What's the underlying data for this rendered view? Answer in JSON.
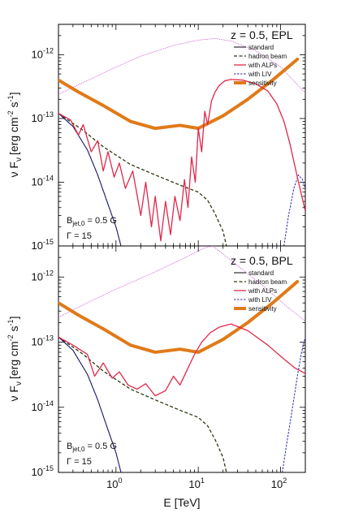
{
  "chart_data": {
    "type": "line",
    "x_axis": {
      "label": "E [TeV]",
      "scale": "log",
      "range": [
        0.2,
        200
      ],
      "ticks": [
        {
          "base": "10",
          "exp": "0",
          "value": 1
        },
        {
          "base": "10",
          "exp": "1",
          "value": 10
        },
        {
          "base": "10",
          "exp": "2",
          "value": 100
        }
      ]
    },
    "y_axis": {
      "label_main": "ν F",
      "label_sub": "ν",
      "label_unit_open": "[erg cm",
      "label_unit_exp1": "-2",
      "label_unit_mid": " s",
      "label_unit_exp2": "-1",
      "label_unit_close": "]",
      "scale": "log",
      "range": [
        1e-15,
        3e-12
      ],
      "ticks": [
        {
          "base": "10",
          "exp": "-12",
          "value": 1e-12
        },
        {
          "base": "10",
          "exp": "-13",
          "value": 1e-13
        },
        {
          "base": "10",
          "exp": "-14",
          "value": 1e-14
        },
        {
          "base": "10",
          "exp": "-15",
          "value": 1e-15
        }
      ]
    },
    "legend_entries": [
      {
        "key": "standard",
        "label": "standard"
      },
      {
        "key": "hadron",
        "label": "hadron beam"
      },
      {
        "key": "alps",
        "label": "with ALPs"
      },
      {
        "key": "liv",
        "label": "with LIV"
      },
      {
        "key": "sensitivity",
        "label": "sensitivity"
      }
    ],
    "series_colors": {
      "intrinsic": "#cc44cc",
      "standard": "#000000",
      "hadron": "#2a3a10",
      "alps": "#e0284a",
      "liv": "#2828b4",
      "sensitivity": "#e07a18"
    },
    "panels": [
      {
        "id": "top",
        "title": "z = 0.5, EPL",
        "annotation": {
          "b_main": "B",
          "b_sub": "jet,0",
          "b_value": " = 0.5 G",
          "gamma": "Γ = 15"
        },
        "series": {
          "intrinsic": [
            [
              0.2,
              2.4e-13
            ],
            [
              0.5,
              4.2e-13
            ],
            [
              1,
              6.4e-13
            ],
            [
              2,
              9.5e-13
            ],
            [
              5,
              1.4e-12
            ],
            [
              10,
              1.7e-12
            ],
            [
              16,
              1.8e-12
            ],
            [
              25,
              1.65e-12
            ],
            [
              50,
              1.15e-12
            ],
            [
              100,
              6.5e-13
            ],
            [
              200,
              2.5e-13
            ]
          ],
          "standard": [
            [
              0.2,
              1.2e-13
            ],
            [
              0.3,
              7.5e-14
            ],
            [
              0.45,
              3.2e-14
            ],
            [
              0.6,
              1.3e-14
            ],
            [
              0.8,
              4.5e-15
            ],
            [
              1.0,
              2e-15
            ],
            [
              1.15,
              1e-15
            ]
          ],
          "hadron": [
            [
              0.2,
              1.2e-13
            ],
            [
              0.4,
              6.5e-14
            ],
            [
              0.7,
              3.6e-14
            ],
            [
              1.5,
              1.9e-14
            ],
            [
              3,
              1.3e-14
            ],
            [
              6,
              9e-15
            ],
            [
              10,
              7e-15
            ],
            [
              13,
              5.2e-15
            ],
            [
              16,
              3.2e-15
            ],
            [
              20,
              1.7e-15
            ],
            [
              22,
              1e-15
            ]
          ],
          "alps": [
            [
              0.2,
              1.2e-13
            ],
            [
              0.28,
              9.5e-14
            ],
            [
              0.35,
              5.5e-14
            ],
            [
              0.4,
              8e-14
            ],
            [
              0.5,
              3e-14
            ],
            [
              0.6,
              4.5e-14
            ],
            [
              0.7,
              1.5e-14
            ],
            [
              0.8,
              3e-14
            ],
            [
              0.95,
              1.2e-14
            ],
            [
              1.1,
              2e-14
            ],
            [
              1.3,
              8e-15
            ],
            [
              1.6,
              1.5e-14
            ],
            [
              2.0,
              3e-15
            ],
            [
              2.3,
              1e-14
            ],
            [
              2.7,
              2e-15
            ],
            [
              3.0,
              6e-15
            ],
            [
              3.5,
              1.2e-15
            ],
            [
              4.0,
              5e-15
            ],
            [
              4.6,
              1.5e-15
            ],
            [
              5.2,
              6e-15
            ],
            [
              6.0,
              2.5e-15
            ],
            [
              6.8,
              1.1e-14
            ],
            [
              7.5,
              4e-15
            ],
            [
              8.3,
              2.5e-14
            ],
            [
              9.2,
              1e-14
            ],
            [
              10,
              7e-14
            ],
            [
              11,
              3e-14
            ],
            [
              12,
              1.3e-13
            ],
            [
              13,
              8e-14
            ],
            [
              14.5,
              1.9e-13
            ],
            [
              16,
              2.6e-13
            ],
            [
              18,
              3.3e-13
            ],
            [
              21,
              3.9e-13
            ],
            [
              25,
              4.1e-13
            ],
            [
              35,
              4e-13
            ],
            [
              50,
              3.5e-13
            ],
            [
              70,
              2.7e-13
            ],
            [
              90,
              1.7e-13
            ],
            [
              110,
              9e-14
            ],
            [
              130,
              4e-14
            ],
            [
              160,
              1.2e-14
            ],
            [
              200,
              3.5e-15
            ]
          ],
          "liv": [
            [
              0.2,
              1.2e-13
            ],
            [
              0.3,
              7.5e-14
            ],
            [
              0.45,
              3.2e-14
            ],
            [
              0.6,
              1.3e-14
            ],
            [
              0.8,
              4.5e-15
            ],
            [
              1.0,
              2e-15
            ],
            [
              1.15,
              1e-15
            ]
          ],
          "liv_tail": [
            [
              110,
              1e-15
            ],
            [
              125,
              3e-15
            ],
            [
              145,
              8e-15
            ],
            [
              165,
              1.3e-14
            ],
            [
              185,
              1.1e-14
            ],
            [
              200,
              8e-15
            ]
          ],
          "sensitivity": [
            [
              0.2,
              4e-13
            ],
            [
              0.35,
              2.6e-13
            ],
            [
              0.7,
              1.6e-13
            ],
            [
              1.5,
              9e-14
            ],
            [
              3,
              7e-14
            ],
            [
              6,
              7.8e-14
            ],
            [
              10,
              7e-14
            ],
            [
              20,
              1.1e-13
            ],
            [
              40,
              2e-13
            ],
            [
              80,
              4e-13
            ],
            [
              160,
              8.5e-13
            ]
          ]
        }
      },
      {
        "id": "bottom",
        "title": "z = 0.5, BPL",
        "annotation": {
          "b_main": "B",
          "b_sub": "jet,0",
          "b_value": " = 0.5 G",
          "gamma": "Γ = 15"
        },
        "series": {
          "intrinsic": [
            [
              0.2,
              2.4e-13
            ],
            [
              0.5,
              4.3e-13
            ],
            [
              1,
              6.5e-13
            ],
            [
              3,
              1.2e-12
            ],
            [
              7,
              2e-12
            ],
            [
              12,
              2.8e-12
            ],
            [
              15,
              3e-12
            ],
            [
              30,
              1.5e-12
            ],
            [
              60,
              7.5e-13
            ],
            [
              120,
              3.5e-13
            ],
            [
              200,
              2.1e-13
            ]
          ],
          "standard": [
            [
              0.2,
              1.2e-13
            ],
            [
              0.3,
              7.5e-14
            ],
            [
              0.45,
              3.2e-14
            ],
            [
              0.6,
              1.3e-14
            ],
            [
              0.8,
              4.5e-15
            ],
            [
              1.0,
              2e-15
            ],
            [
              1.15,
              1e-15
            ]
          ],
          "hadron": [
            [
              0.2,
              1.2e-13
            ],
            [
              0.4,
              6.5e-14
            ],
            [
              0.7,
              3.6e-14
            ],
            [
              1.5,
              1.9e-14
            ],
            [
              3,
              1.3e-14
            ],
            [
              6,
              9e-15
            ],
            [
              10,
              7e-15
            ],
            [
              13,
              5.2e-15
            ],
            [
              16,
              3.2e-15
            ],
            [
              20,
              1.7e-15
            ],
            [
              22,
              1e-15
            ]
          ],
          "alps": [
            [
              0.2,
              1.2e-13
            ],
            [
              0.3,
              9e-14
            ],
            [
              0.45,
              6.5e-14
            ],
            [
              0.55,
              3e-14
            ],
            [
              0.7,
              4.8e-14
            ],
            [
              0.9,
              2.8e-14
            ],
            [
              1.1,
              3.5e-14
            ],
            [
              1.4,
              2.2e-14
            ],
            [
              1.8,
              1.9e-14
            ],
            [
              2.3,
              2.3e-14
            ],
            [
              3.0,
              1.5e-14
            ],
            [
              4,
              1.8e-14
            ],
            [
              5,
              3e-14
            ],
            [
              6,
              2.2e-14
            ],
            [
              7.5,
              4e-14
            ],
            [
              9,
              6.5e-14
            ],
            [
              11,
              1e-13
            ],
            [
              14,
              1.4e-13
            ],
            [
              18,
              1.7e-13
            ],
            [
              25,
              1.9e-13
            ],
            [
              40,
              1.5e-13
            ],
            [
              70,
              9e-14
            ],
            [
              110,
              5.5e-14
            ],
            [
              150,
              4e-14
            ],
            [
              200,
              3.3e-14
            ]
          ],
          "liv": [
            [
              0.2,
              1.2e-13
            ],
            [
              0.3,
              7.5e-14
            ],
            [
              0.45,
              3.2e-14
            ],
            [
              0.6,
              1.3e-14
            ],
            [
              0.8,
              4.5e-15
            ],
            [
              1.0,
              2e-15
            ],
            [
              1.15,
              1e-15
            ]
          ],
          "liv_tail": [
            [
              105,
              1e-15
            ],
            [
              120,
              3e-15
            ],
            [
              140,
              1e-14
            ],
            [
              160,
              3e-14
            ],
            [
              180,
              7e-14
            ],
            [
              200,
              1.2e-13
            ]
          ],
          "sensitivity": [
            [
              0.2,
              4e-13
            ],
            [
              0.35,
              2.6e-13
            ],
            [
              0.7,
              1.6e-13
            ],
            [
              1.5,
              9e-14
            ],
            [
              3,
              7e-14
            ],
            [
              6,
              7.8e-14
            ],
            [
              10,
              7e-14
            ],
            [
              20,
              1.1e-13
            ],
            [
              40,
              2e-13
            ],
            [
              80,
              4e-13
            ],
            [
              160,
              8.5e-13
            ]
          ]
        }
      }
    ]
  }
}
